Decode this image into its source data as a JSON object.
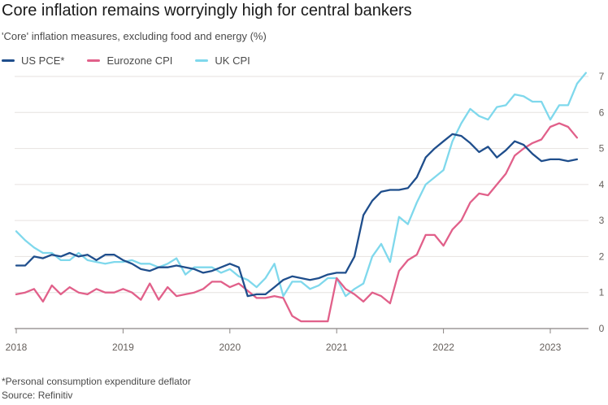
{
  "chart_data": {
    "type": "line",
    "title": "Core inflation remains worryingly high for central bankers",
    "subtitle": "'Core' inflation measures, excluding food and energy (%)",
    "xlabel": "",
    "ylabel": "",
    "x_ticks": [
      "2018",
      "2019",
      "2020",
      "2021",
      "2022",
      "2023"
    ],
    "y_ticks": [
      "0",
      "1",
      "2",
      "3",
      "4",
      "5",
      "6",
      "7"
    ],
    "ylim": [
      0,
      7
    ],
    "grid": "horizontal",
    "legend_position": "top-left",
    "y_axis_position": "right",
    "x_start": "2018-01",
    "series": [
      {
        "name": "US PCE*",
        "color": "#1f4e8c",
        "values": [
          1.75,
          1.75,
          2.0,
          1.95,
          2.05,
          2.0,
          2.1,
          2.0,
          2.05,
          1.9,
          2.05,
          2.05,
          1.9,
          1.8,
          1.65,
          1.6,
          1.7,
          1.7,
          1.75,
          1.7,
          1.65,
          1.55,
          1.6,
          1.7,
          1.8,
          1.7,
          0.9,
          0.95,
          0.95,
          1.15,
          1.35,
          1.45,
          1.4,
          1.35,
          1.4,
          1.5,
          1.55,
          1.55,
          2.0,
          3.15,
          3.55,
          3.8,
          3.85,
          3.85,
          3.9,
          4.2,
          4.75,
          5.0,
          5.2,
          5.4,
          5.35,
          5.15,
          4.9,
          5.05,
          4.75,
          4.95,
          5.2,
          5.1,
          4.85,
          4.65,
          4.7,
          4.7,
          4.65,
          4.7
        ]
      },
      {
        "name": "Eurozone CPI",
        "color": "#e1608a",
        "values": [
          0.95,
          1.0,
          1.1,
          0.75,
          1.2,
          0.95,
          1.15,
          1.0,
          0.95,
          1.1,
          1.0,
          1.0,
          1.1,
          1.0,
          0.8,
          1.25,
          0.8,
          1.15,
          0.9,
          0.95,
          1.0,
          1.1,
          1.3,
          1.3,
          1.15,
          1.25,
          1.05,
          0.85,
          0.85,
          0.9,
          0.85,
          0.35,
          0.2,
          0.2,
          0.2,
          0.2,
          1.4,
          1.1,
          0.95,
          0.75,
          1.0,
          0.9,
          0.7,
          1.6,
          1.9,
          2.05,
          2.6,
          2.6,
          2.3,
          2.75,
          3.0,
          3.5,
          3.75,
          3.7,
          4.0,
          4.3,
          4.8,
          5.0,
          5.15,
          5.25,
          5.6,
          5.7,
          5.6,
          5.3
        ]
      },
      {
        "name": "UK CPI",
        "color": "#7fd8ec",
        "values": [
          2.7,
          2.45,
          2.25,
          2.1,
          2.1,
          1.9,
          1.9,
          2.1,
          1.9,
          1.85,
          1.8,
          1.85,
          1.85,
          1.9,
          1.8,
          1.8,
          1.7,
          1.8,
          1.95,
          1.5,
          1.7,
          1.7,
          1.7,
          1.55,
          1.65,
          1.45,
          1.35,
          1.15,
          1.4,
          1.8,
          0.9,
          1.3,
          1.3,
          1.1,
          1.2,
          1.4,
          1.4,
          0.9,
          1.1,
          1.25,
          2.0,
          2.35,
          1.85,
          3.1,
          2.9,
          3.5,
          4.0,
          4.2,
          4.4,
          5.2,
          5.7,
          6.1,
          5.9,
          5.8,
          6.15,
          6.2,
          6.5,
          6.45,
          6.3,
          6.3,
          5.8,
          6.2,
          6.2,
          6.8,
          7.1
        ]
      }
    ]
  },
  "footnote": "*Personal consumption expenditure deflator",
  "source": "Source: Refinitiv"
}
